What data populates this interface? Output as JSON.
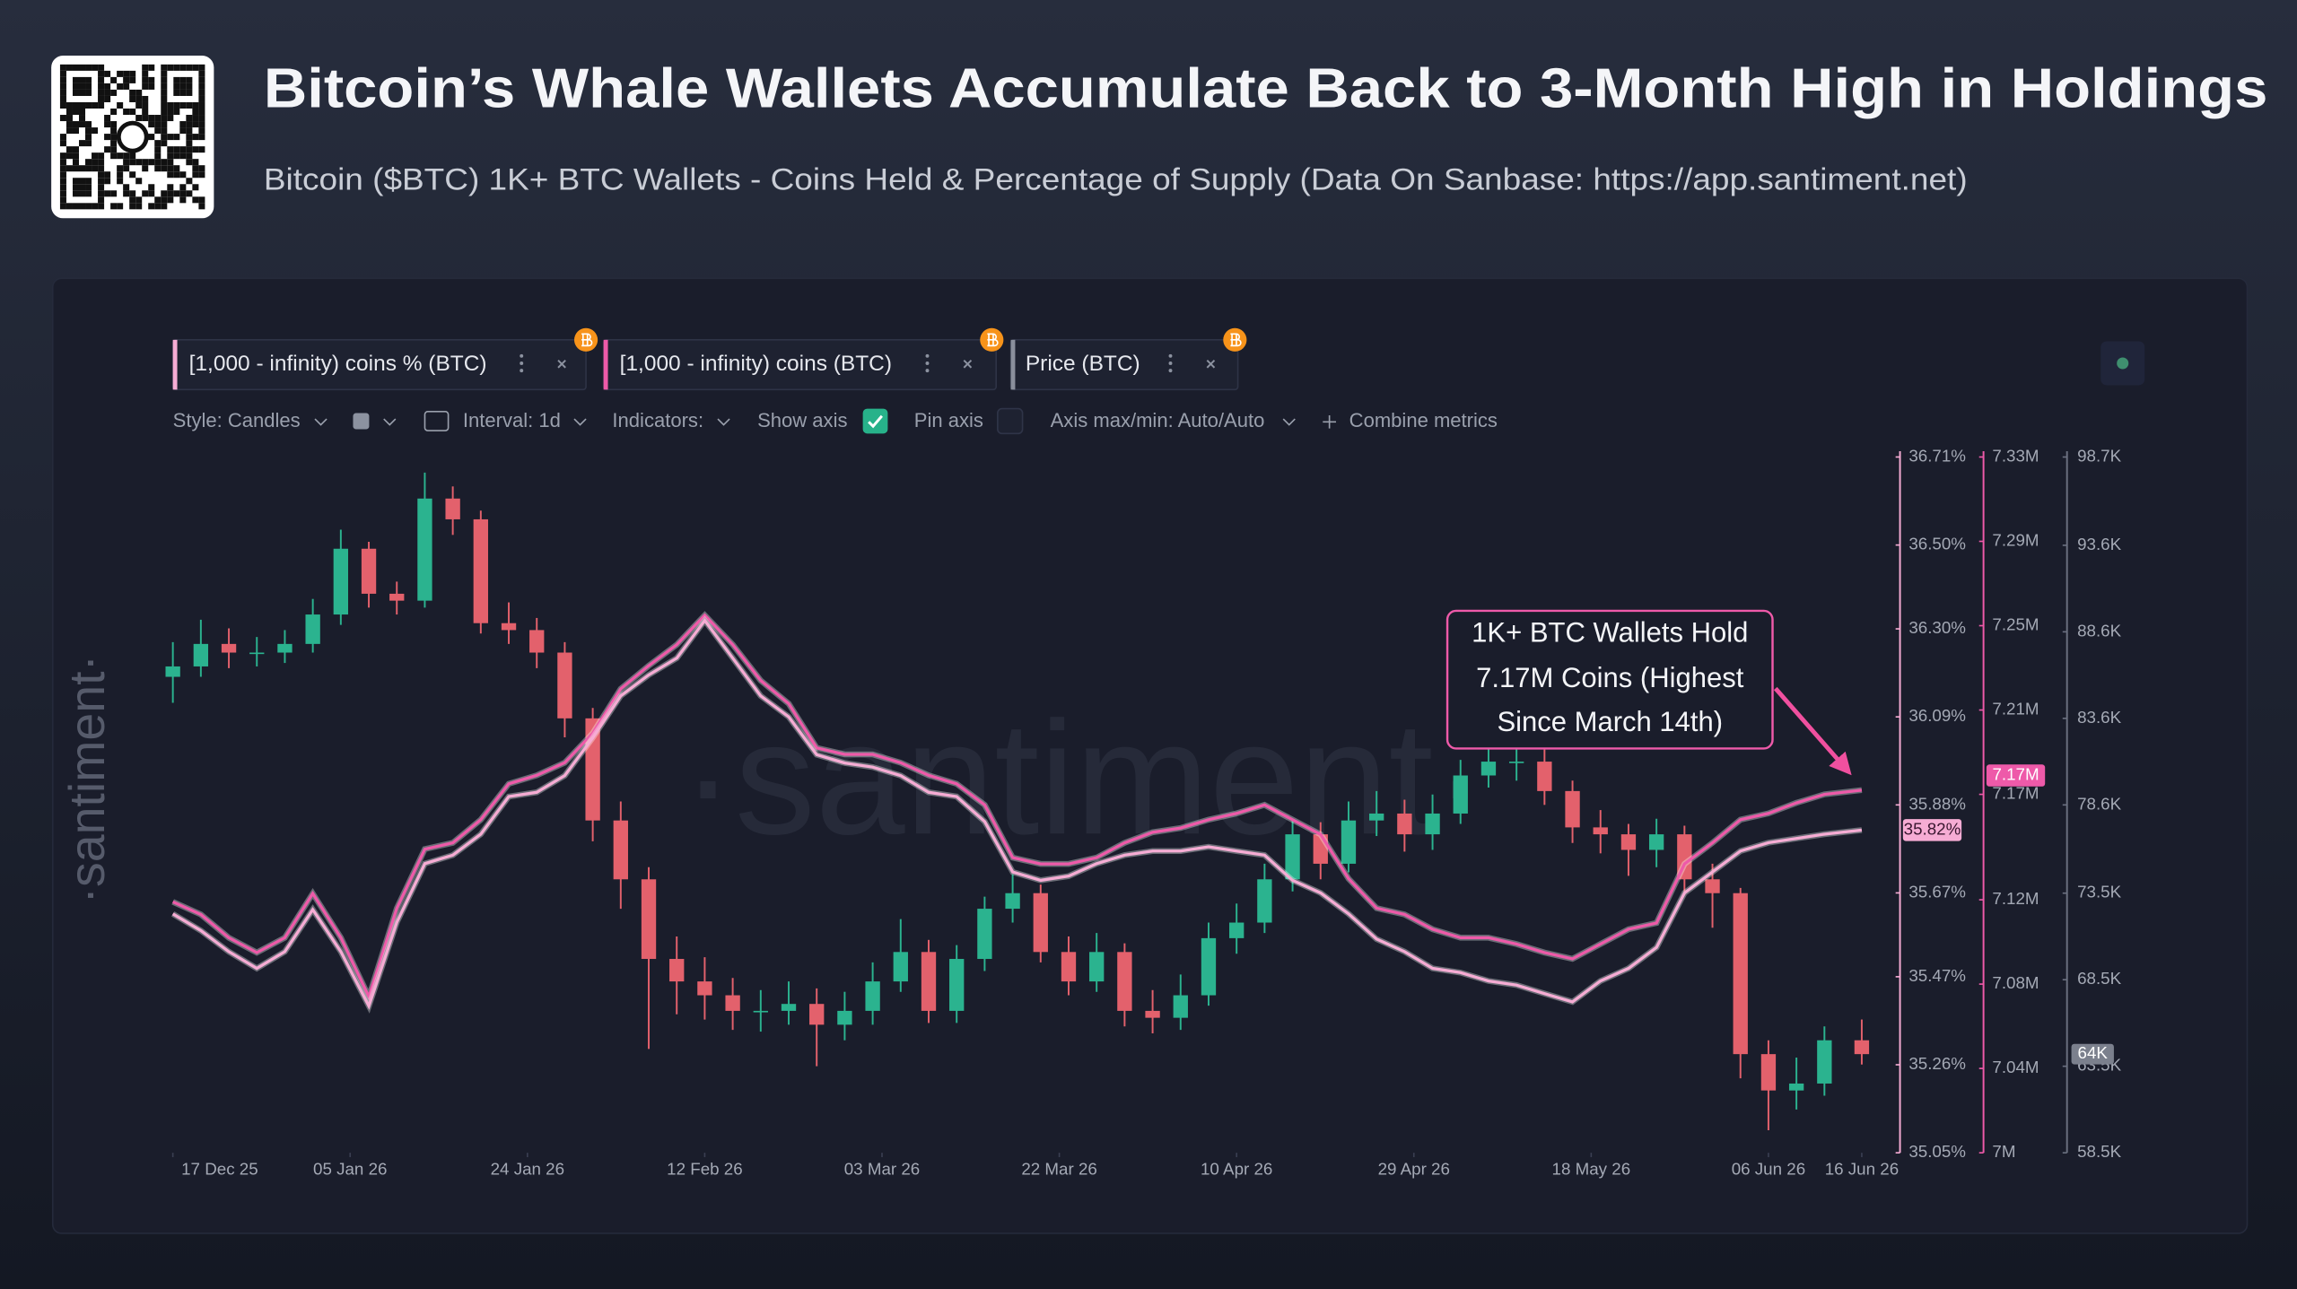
{
  "header": {
    "title": "Bitcoin’s Whale Wallets Accumulate Back to 3-Month High in Holdings",
    "subtitle": "Bitcoin ($BTC) 1K+ BTC Wallets - Coins Held & Percentage of Supply (Data On Sanbase: https://app.santiment.net)"
  },
  "toolbar": {
    "style": "Style: Candles",
    "interval": "Interval: 1d",
    "indicators": "Indicators:",
    "show_axis": "Show axis",
    "pin_axis": "Pin axis",
    "axis_minmax": "Axis max/min: Auto/Auto",
    "combine": "Combine metrics"
  },
  "watermark": "·santiment·",
  "chart_data": {
    "type": "candlestick",
    "name": "Price (BTC)",
    "x": [
      "2025-12-17",
      "2025-12-20",
      "2025-12-23",
      "2025-12-26",
      "2025-12-29",
      "2026-01-01",
      "2026-01-04",
      "2026-01-07",
      "2026-01-10",
      "2026-01-13",
      "2026-01-16",
      "2026-01-19",
      "2026-01-22",
      "2026-01-25",
      "2026-01-28",
      "2026-01-31",
      "2026-02-03",
      "2026-02-06",
      "2026-02-09",
      "2026-02-12",
      "2026-02-15",
      "2026-02-18",
      "2026-02-21",
      "2026-02-24",
      "2026-02-27",
      "2026-03-02",
      "2026-03-05",
      "2026-03-08",
      "2026-03-11",
      "2026-03-14",
      "2026-03-17",
      "2026-03-20",
      "2026-03-23",
      "2026-03-26",
      "2026-03-29",
      "2026-04-01",
      "2026-04-04",
      "2026-04-07",
      "2026-04-10",
      "2026-04-13",
      "2026-04-16",
      "2026-04-19",
      "2026-04-22",
      "2026-04-25",
      "2026-04-28",
      "2026-05-01",
      "2026-05-04",
      "2026-05-07",
      "2026-05-10",
      "2026-05-13",
      "2026-05-16",
      "2026-05-19",
      "2026-05-22",
      "2026-05-25",
      "2026-05-28",
      "2026-05-31",
      "2026-06-03",
      "2026-06-06",
      "2026-06-09",
      "2026-06-12",
      "2026-06-16"
    ],
    "open": [
      86000,
      86600,
      87900,
      87400,
      87400,
      87900,
      89600,
      93400,
      90800,
      90400,
      96300,
      95100,
      89100,
      88700,
      87400,
      83600,
      77700,
      74300,
      69700,
      68400,
      67600,
      66700,
      66700,
      67100,
      65900,
      66700,
      68400,
      70100,
      66700,
      69700,
      72600,
      73500,
      70100,
      68400,
      70100,
      66700,
      66300,
      67600,
      70900,
      71800,
      74300,
      76900,
      75200,
      77700,
      78100,
      76900,
      78100,
      80300,
      81100,
      81100,
      79400,
      77300,
      76900,
      76000,
      76900,
      74300,
      73500,
      64200,
      62100,
      62500,
      65000
    ],
    "high": [
      88000,
      89300,
      88800,
      88300,
      88700,
      90500,
      94500,
      93800,
      91500,
      97800,
      97000,
      95600,
      90300,
      89400,
      88000,
      84200,
      78800,
      75000,
      71000,
      69800,
      68600,
      67900,
      68400,
      68000,
      67800,
      69500,
      72000,
      70800,
      70500,
      73300,
      74600,
      74000,
      71000,
      71200,
      70600,
      67900,
      68800,
      71800,
      72900,
      75200,
      77800,
      77600,
      78800,
      79400,
      78900,
      79200,
      81200,
      82300,
      82500,
      81800,
      80000,
      78300,
      77500,
      77800,
      77400,
      75200,
      73800,
      65000,
      64000,
      65800,
      66200
    ],
    "low": [
      84500,
      86000,
      86500,
      86600,
      86800,
      87400,
      89000,
      90000,
      89600,
      90000,
      94200,
      88500,
      87900,
      86500,
      82500,
      76500,
      72600,
      64500,
      66500,
      66200,
      65600,
      65500,
      65900,
      63500,
      65000,
      65900,
      67800,
      66000,
      66000,
      69000,
      71800,
      69500,
      67600,
      67800,
      65800,
      65400,
      65600,
      67000,
      70000,
      71200,
      73600,
      74300,
      74700,
      76800,
      75900,
      76000,
      77500,
      79600,
      80000,
      78600,
      76400,
      75800,
      74500,
      75000,
      73400,
      71500,
      62800,
      59800,
      61000,
      61800,
      63600
    ],
    "close": [
      86600,
      87900,
      87400,
      87400,
      87900,
      89600,
      93400,
      90800,
      90400,
      96300,
      95100,
      89100,
      88700,
      87400,
      83600,
      77700,
      74300,
      69700,
      68400,
      67600,
      66700,
      66700,
      67100,
      65900,
      66700,
      68400,
      70100,
      66700,
      69700,
      72600,
      73500,
      70100,
      68400,
      70100,
      66700,
      66300,
      67600,
      70900,
      71800,
      74300,
      76900,
      75200,
      77700,
      78100,
      76900,
      78100,
      80300,
      81100,
      81100,
      79400,
      77300,
      76900,
      76000,
      76900,
      74300,
      73500,
      64200,
      62100,
      62500,
      65000,
      64200
    ],
    "up_color": "#2bb38f",
    "down_color": "#e3616c",
    "last_value_label": "64K",
    "xlim": [
      "2025-12-17",
      "2026-06-19"
    ],
    "xticks": [
      {
        "value": "2025-12-17",
        "label": "17 Dec 25"
      },
      {
        "value": "2026-01-05",
        "label": "05 Jan 26"
      },
      {
        "value": "2026-01-24",
        "label": "24 Jan 26"
      },
      {
        "value": "2026-02-12",
        "label": "12 Feb 26"
      },
      {
        "value": "2026-03-03",
        "label": "03 Mar 26"
      },
      {
        "value": "2026-03-22",
        "label": "22 Mar 26"
      },
      {
        "value": "2026-04-10",
        "label": "10 Apr 26"
      },
      {
        "value": "2026-04-29",
        "label": "29 Apr 26"
      },
      {
        "value": "2026-05-18",
        "label": "18 May 26"
      },
      {
        "value": "2026-06-06",
        "label": "06 Jun 26"
      },
      {
        "value": "2026-06-16",
        "label": "16 Jun 26"
      }
    ],
    "ylim": [
      58500,
      98700
    ],
    "yticks": [
      {
        "value": 58500,
        "label": "58.5K"
      },
      {
        "value": 63500,
        "label": "63.5K"
      },
      {
        "value": 68500,
        "label": "68.5K"
      },
      {
        "value": 73500,
        "label": "73.5K"
      },
      {
        "value": 78600,
        "label": "78.6K"
      },
      {
        "value": 83600,
        "label": "83.6K"
      },
      {
        "value": 88600,
        "label": "88.6K"
      },
      {
        "value": 93600,
        "label": "93.6K"
      },
      {
        "value": 98700,
        "label": "98.7K"
      }
    ],
    "y2lim": [
      7000000,
      7330000
    ],
    "y2ticks": [
      {
        "value": 7000000,
        "label": "7M"
      },
      {
        "value": 7040000,
        "label": "7.04M"
      },
      {
        "value": 7080000,
        "label": "7.08M"
      },
      {
        "value": 7120000,
        "label": "7.12M"
      },
      {
        "value": 7170000,
        "label": "7.17M"
      },
      {
        "value": 7210000,
        "label": "7.21M"
      },
      {
        "value": 7250000,
        "label": "7.25M"
      },
      {
        "value": 7290000,
        "label": "7.29M"
      },
      {
        "value": 7330000,
        "label": "7.33M"
      }
    ],
    "y3lim": [
      35.05,
      36.71
    ],
    "y3ticks": [
      {
        "value": 35.05,
        "label": "35.05%"
      },
      {
        "value": 35.26,
        "label": "35.26%"
      },
      {
        "value": 35.47,
        "label": "35.47%"
      },
      {
        "value": 35.67,
        "label": "35.67%"
      },
      {
        "value": 35.88,
        "label": "35.88%"
      },
      {
        "value": 36.09,
        "label": "36.09%"
      },
      {
        "value": 36.3,
        "label": "36.30%"
      },
      {
        "value": 36.5,
        "label": "36.50%"
      },
      {
        "value": 36.71,
        "label": "36.71%"
      }
    ],
    "series": [
      {
        "name": "[1,000 - infinity) coins (BTC)",
        "color": "#ee5aa9",
        "axis": "y2",
        "last_value_label": "7.17M",
        "values": [
          7119000,
          7113000,
          7102000,
          7095000,
          7102000,
          7123000,
          7102000,
          7074000,
          7116000,
          7144000,
          7147000,
          7158000,
          7175000,
          7179000,
          7185000,
          7199000,
          7220000,
          7231000,
          7241000,
          7255000,
          7241000,
          7224000,
          7213000,
          7192000,
          7189000,
          7189000,
          7185000,
          7179000,
          7175000,
          7165000,
          7140000,
          7137000,
          7137000,
          7140000,
          7147000,
          7152000,
          7154000,
          7158000,
          7161000,
          7165000,
          7158000,
          7151000,
          7130000,
          7116000,
          7113000,
          7106000,
          7102000,
          7102000,
          7099000,
          7095000,
          7092000,
          7099000,
          7106000,
          7109000,
          7137000,
          7147000,
          7158000,
          7161000,
          7166000,
          7170000,
          7172000
        ]
      },
      {
        "name": "[1,000 - infinity) coins % (BTC)",
        "color": "#f6acd4",
        "axis": "y3",
        "last_value_label": "35.82%",
        "values": [
          35.62,
          35.58,
          35.53,
          35.49,
          35.53,
          35.63,
          35.53,
          35.4,
          35.6,
          35.74,
          35.76,
          35.81,
          35.9,
          35.91,
          35.95,
          36.04,
          36.14,
          36.19,
          36.23,
          36.32,
          36.23,
          36.14,
          36.09,
          36.0,
          35.98,
          35.97,
          35.95,
          35.91,
          35.9,
          35.84,
          35.72,
          35.7,
          35.71,
          35.74,
          35.76,
          35.77,
          35.77,
          35.78,
          35.77,
          35.76,
          35.7,
          35.67,
          35.62,
          35.56,
          35.53,
          35.49,
          35.48,
          35.46,
          35.45,
          35.43,
          35.41,
          35.46,
          35.49,
          35.54,
          35.67,
          35.72,
          35.77,
          35.79,
          35.8,
          35.81,
          35.82
        ]
      }
    ],
    "annotation": [
      "1K+ BTC Wallets Hold",
      "7.17M Coins (Highest",
      "Since March 14th)"
    ]
  }
}
